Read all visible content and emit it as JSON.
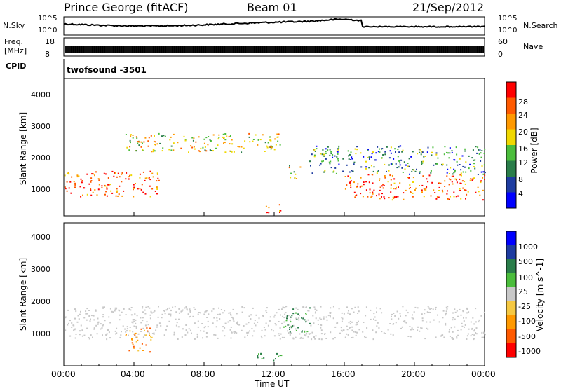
{
  "header": {
    "title": "Prince George (fitACF)",
    "beam": "Beam 01",
    "date": "21/Sep/2012"
  },
  "top_panel": {
    "left_label": "N.Sky",
    "right_label": "N.Search",
    "left_ticks": [
      "10^5",
      "10^0"
    ],
    "right_ticks": [
      "10^5",
      "10^0"
    ]
  },
  "freq_panel": {
    "left_label_line1": "Freq.",
    "left_label_line2": "[MHz]",
    "right_label": "Nave",
    "left_ticks": [
      "18",
      "8"
    ],
    "right_ticks": [
      "60",
      "0"
    ]
  },
  "cpid_panel": {
    "label": "CPID",
    "value": "twofsound -3501"
  },
  "x_axis": {
    "label": "Time UT",
    "ticks": [
      "00:00",
      "04:00",
      "08:00",
      "12:00",
      "16:00",
      "20:00",
      "00:00"
    ]
  },
  "colors": {
    "power": [
      "#0000ff",
      "#1e3ca0",
      "#2a7d4a",
      "#4bbd3c",
      "#f0d800",
      "#ff9900",
      "#ff5a00",
      "#ff0000"
    ],
    "velocity": [
      "#ff0000",
      "#ff5a00",
      "#ff9900",
      "#f5c842",
      "#c8c8c8",
      "#4bbd3c",
      "#2a7d4a",
      "#1e3ca0",
      "#0000ff"
    ]
  },
  "chart_data": [
    {
      "type": "heatmap",
      "title": "",
      "xlabel": "",
      "ylabel": "Slant Range [km]",
      "xlim": [
        "00:00",
        "00:00"
      ],
      "ylim": [
        180,
        4500
      ],
      "yticks": [
        1000,
        2000,
        3000,
        4000
      ],
      "colorbar": {
        "label": "Power [dB]",
        "ticks": [
          4,
          8,
          12,
          16,
          20,
          24,
          28
        ],
        "range": [
          0,
          30
        ]
      },
      "regions": [
        {
          "t": [
            0.0,
            5.5
          ],
          "r": [
            800,
            1600
          ],
          "level": "high"
        },
        {
          "t": [
            3.5,
            12.5
          ],
          "r": [
            2200,
            2800
          ],
          "level": "medium"
        },
        {
          "t": [
            11.5,
            12.5
          ],
          "r": [
            300,
            600
          ],
          "level": "high"
        },
        {
          "t": [
            12.8,
            13.5
          ],
          "r": [
            1300,
            1800
          ],
          "level": "medium"
        },
        {
          "t": [
            16.0,
            24.0
          ],
          "r": [
            700,
            1500
          ],
          "level": "high"
        },
        {
          "t": [
            14.0,
            24.0
          ],
          "r": [
            1500,
            2400
          ],
          "level": "low"
        }
      ]
    },
    {
      "type": "heatmap",
      "title": "",
      "xlabel": "Time UT",
      "ylabel": "Slant Range [km]",
      "xlim": [
        "00:00",
        "00:00"
      ],
      "ylim": [
        180,
        4500
      ],
      "yticks": [
        1000,
        2000,
        3000,
        4000
      ],
      "colorbar": {
        "label": "Velocity [m s^-1]",
        "ticks": [
          1000,
          500,
          100,
          25,
          -25,
          -100,
          -500,
          -1000
        ]
      },
      "regions": [
        {
          "t": [
            0.0,
            24.0
          ],
          "r": [
            1000,
            2000
          ],
          "level": "near zero"
        },
        {
          "t": [
            3.5,
            5.0
          ],
          "r": [
            600,
            1400
          ],
          "level": "negative"
        },
        {
          "t": [
            12.5,
            14.0
          ],
          "r": [
            1200,
            2000
          ],
          "level": "positive"
        },
        {
          "t": [
            11.0,
            12.5
          ],
          "r": [
            300,
            600
          ],
          "level": "positive"
        }
      ]
    }
  ]
}
